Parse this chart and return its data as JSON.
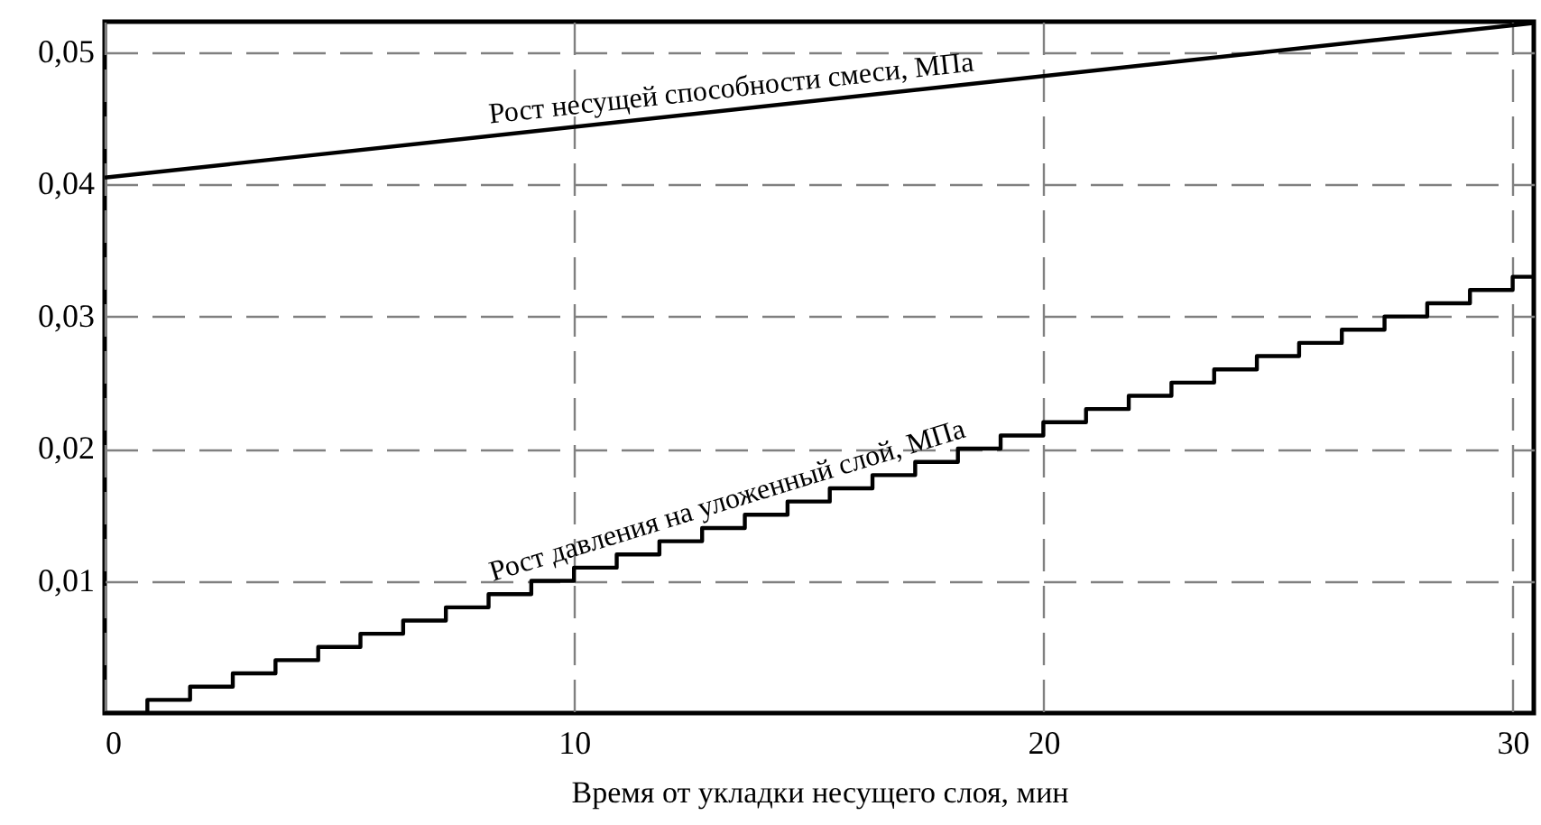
{
  "chart_data": {
    "type": "line",
    "xlabel": "Время от укладки несущего слоя, мин",
    "xlim": [
      0,
      30.45
    ],
    "xticks": [
      0,
      10,
      20,
      30
    ],
    "ylim": [
      0,
      0.0523
    ],
    "yticks": [
      {
        "value": 0.01,
        "label": "0,01"
      },
      {
        "value": 0.02,
        "label": "0,02"
      },
      {
        "value": 0.03,
        "label": "0,03"
      },
      {
        "value": 0.04,
        "label": "0,04"
      },
      {
        "value": 0.05,
        "label": "0,05"
      }
    ],
    "grid": true,
    "series": [
      {
        "name": "Рост несущей способности смеси, МПа",
        "color": "#000000",
        "x": [
          0,
          30.45
        ],
        "values": [
          0.0405,
          0.0522
        ]
      },
      {
        "name": "Рост давления на уложенный слой, МПа",
        "type": "step",
        "color": "#000000",
        "x": [
          0,
          0.91,
          1.82,
          2.73,
          3.64,
          4.55,
          5.45,
          6.36,
          7.27,
          8.18,
          9.09,
          10,
          10.91,
          11.82,
          12.73,
          13.64,
          14.55,
          15.45,
          16.36,
          17.27,
          18.18,
          19.09,
          20,
          20.91,
          21.82,
          22.73,
          23.64,
          24.55,
          25.45,
          26.36,
          27.27,
          28.18,
          29.09,
          30,
          30.45
        ],
        "values": [
          0,
          0.001,
          0.002,
          0.003,
          0.004,
          0.005,
          0.006,
          0.007,
          0.008,
          0.009,
          0.01,
          0.011,
          0.012,
          0.013,
          0.014,
          0.015,
          0.016,
          0.017,
          0.018,
          0.019,
          0.02,
          0.021,
          0.022,
          0.023,
          0.024,
          0.025,
          0.026,
          0.027,
          0.028,
          0.029,
          0.03,
          0.031,
          0.032,
          0.033,
          0.033
        ]
      }
    ]
  }
}
